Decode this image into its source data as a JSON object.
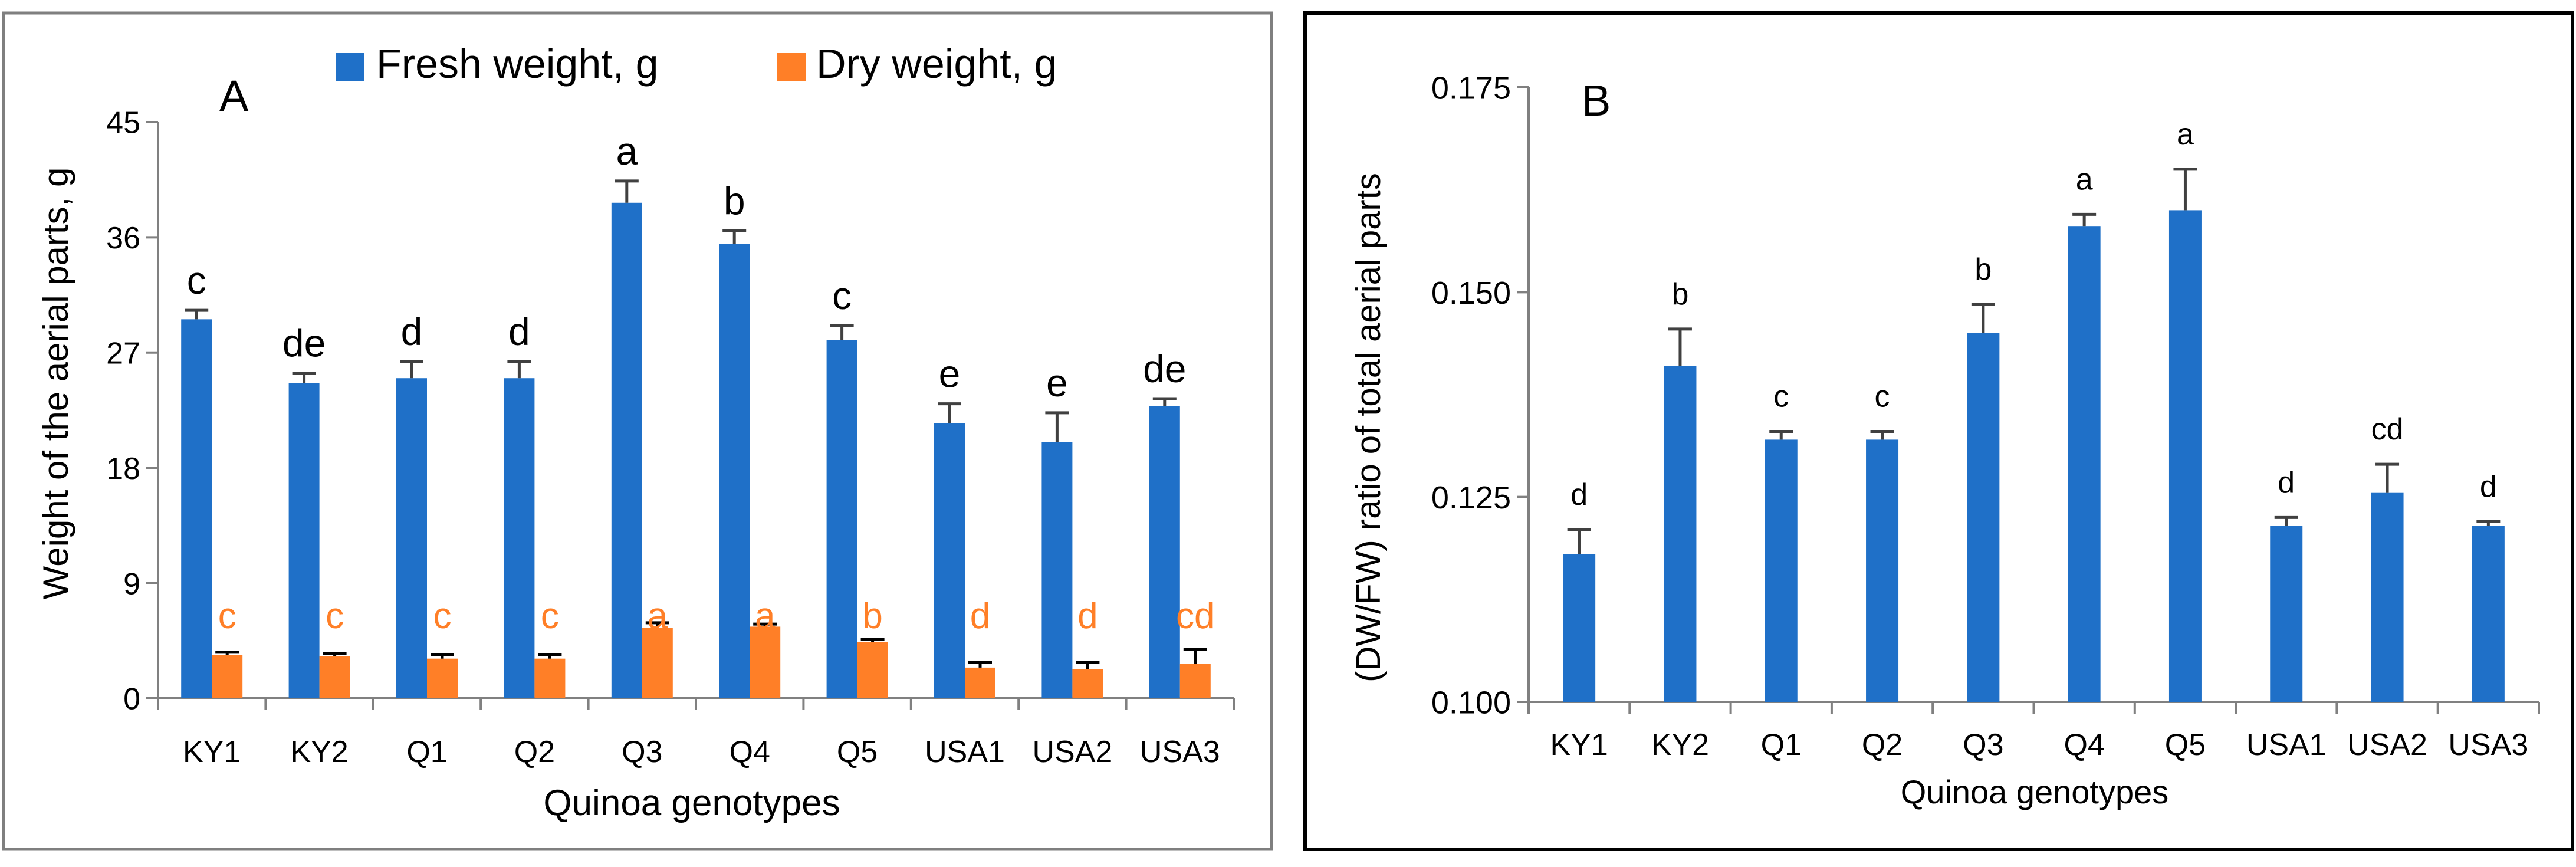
{
  "colors": {
    "fresh": "#1F70C8",
    "dry": "#FF7F27",
    "axis": "#808080",
    "text": "#000000",
    "frame_a": "#7F7F7F",
    "frame_b": "#000000"
  },
  "chart_data": [
    {
      "id": "A",
      "type": "bar",
      "panel_label": "A",
      "categories": [
        "KY1",
        "KY2",
        "Q1",
        "Q2",
        "Q3",
        "Q4",
        "Q5",
        "USA1",
        "USA2",
        "USA3"
      ],
      "xlabel": "Quinoa genotypes",
      "ylabel": "Weight of the aerial parts, g",
      "ylim": [
        0,
        45
      ],
      "yticks": [
        "0",
        "9",
        "18",
        "27",
        "36",
        "45"
      ],
      "grid": false,
      "legend_position": "top",
      "series": [
        {
          "name": "Fresh weight, g",
          "color": "#1F70C8",
          "values": [
            29.6,
            24.6,
            25.0,
            25.0,
            38.7,
            35.5,
            28.0,
            21.5,
            20.0,
            22.8
          ],
          "errors": [
            0.7,
            0.8,
            1.3,
            1.3,
            1.7,
            1.0,
            1.1,
            1.5,
            2.3,
            0.6
          ],
          "letters": [
            "c",
            "de",
            "d",
            "d",
            "a",
            "b",
            "c",
            "e",
            "e",
            "de"
          ]
        },
        {
          "name": "Dry weight, g",
          "color": "#FF7F27",
          "values": [
            3.4,
            3.3,
            3.1,
            3.1,
            5.5,
            5.6,
            4.4,
            2.4,
            2.3,
            2.7
          ],
          "errors": [
            0.2,
            0.2,
            0.3,
            0.3,
            0.4,
            0.2,
            0.2,
            0.4,
            0.5,
            1.1
          ],
          "letters": [
            "c",
            "c",
            "c",
            "c",
            "a",
            "a",
            "b",
            "d",
            "d",
            "cd"
          ]
        }
      ]
    },
    {
      "id": "B",
      "type": "bar",
      "panel_label": "B",
      "categories": [
        "KY1",
        "KY2",
        "Q1",
        "Q2",
        "Q3",
        "Q4",
        "Q5",
        "USA1",
        "USA2",
        "USA3"
      ],
      "xlabel": "Quinoa genotypes",
      "ylabel": "(DW/FW) ratio of total aerial parts",
      "ylim": [
        0.1,
        0.175
      ],
      "yticks": [
        "0.100",
        "0.125",
        "0.150",
        "0.175"
      ],
      "grid": false,
      "series": [
        {
          "name": "DW/FW ratio",
          "color": "#1F70C8",
          "values": [
            0.118,
            0.141,
            0.132,
            0.132,
            0.145,
            0.158,
            0.16,
            0.1215,
            0.1255,
            0.1215
          ],
          "errors": [
            0.003,
            0.0045,
            0.001,
            0.001,
            0.0035,
            0.0015,
            0.005,
            0.001,
            0.0035,
            0.0005
          ],
          "letters": [
            "d",
            "b",
            "c",
            "c",
            "b",
            "a",
            "a",
            "d",
            "cd",
            "d"
          ]
        }
      ]
    }
  ]
}
